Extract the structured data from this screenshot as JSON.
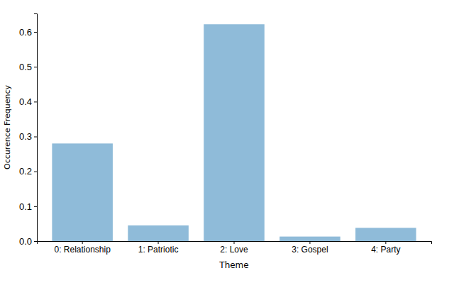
{
  "chart_data": {
    "type": "bar",
    "x_label": "Theme",
    "y_label": "Occurence Frequency",
    "categories": [
      "0: Relationship",
      "1: Patriotic",
      "2: Love",
      "3: Gospel",
      "4: Party"
    ],
    "values": [
      0.28,
      0.045,
      0.622,
      0.013,
      0.038
    ],
    "color": "#8fbbd9",
    "ylim": [
      0,
      0.653
    ],
    "yticks": [
      {
        "value": 0,
        "label": "0.0"
      },
      0.1,
      0.2,
      0.3,
      0.4,
      0.5,
      0.6
    ],
    "grid": false
  }
}
